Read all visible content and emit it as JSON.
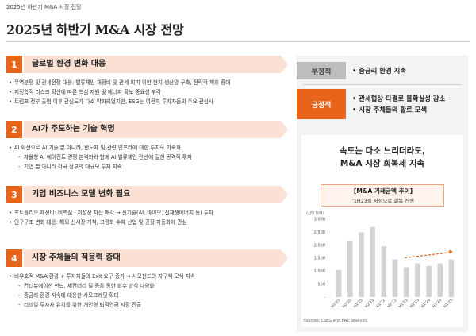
{
  "header": {
    "topline": "2025년 하반기 M&A 시장 전망",
    "title": "2025년 하반기 M&A 시장 전망"
  },
  "sections": [
    {
      "num": "1",
      "title": "글로벌 환경 변화 대응",
      "items": [
        {
          "type": "b",
          "text": "무역분쟁 및 관세전쟁 대응: 밸류체인 재정비 및 관세 회피 위한 현지 생산망 구축, 전략적 제휴 증대"
        },
        {
          "type": "b",
          "text": "지정학적 리스크 확산에 따른 핵심 자원 및 에너지 확보 중요성 부각"
        },
        {
          "type": "b",
          "text": "트럼프 정부 출범 이후 관심도가 다소 약화되었지만, ESG는 여전히 투자자들의 주요 관심사"
        }
      ]
    },
    {
      "num": "2",
      "title": "AI가 주도하는 기술 혁명",
      "items": [
        {
          "type": "b",
          "text": "AI 확산으로 AI 기술 뿐 아니라, 반도체 및 관련 인프라에 대한 투자도 가속화"
        },
        {
          "type": "d",
          "text": "자율형 AI 에이전트 경쟁 본격화와 함께 AI 밸류체인 전반에 걸친 공격적 투자"
        },
        {
          "type": "d",
          "text": "기업 뿐 아니라 각국 정부의 대규모 투자 지속"
        }
      ]
    },
    {
      "num": "3",
      "title": "기업 비즈니스 모델 변화 필요",
      "items": [
        {
          "type": "b",
          "text": "포트폴리오 재정비: 비핵심 · 저성장 자산 매각 → 신기술(AI, 바이오, 신재생에너지 등) 투자"
        },
        {
          "type": "b",
          "text": "인구구조 변화 대응: 해외 신시장 개척, 고령화 수혜 산업 및 공장 자동화에 관심"
        }
      ]
    },
    {
      "num": "4",
      "title": "시장 주체들의 적응력 증대",
      "items": [
        {
          "type": "b",
          "text": "비우호적 M&A 환경 + 투자자들의 Exit 요구 증가 → 사모펀드의 자구책 모색 지속"
        },
        {
          "type": "d",
          "text": "컨티뉴에이션 펀드, 세컨더리 딜 등을 통한 회수 방식 다양화"
        },
        {
          "type": "d",
          "text": "중금리 환경 지속에 대응한 사모크레딧 확대"
        },
        {
          "type": "d",
          "text": "리테일 투자자 유치를 위한 개인형 퇴직연금 시장 진출"
        }
      ]
    }
  ],
  "panel": {
    "negative": {
      "tag": "부정적",
      "lines": [
        "• 중금리 환경 지속"
      ]
    },
    "positive": {
      "tag": "긍정적",
      "lines": [
        "• 관세협상 타결로 불확실성 감소",
        "• 시장 주체들의 활로 모색"
      ]
    },
    "headline": [
      "속도는 다소 느리더라도,",
      "M&A 시장 회복세 지속"
    ],
    "chart_title": "[M&A 거래금액 추이]",
    "chart_subtitle": "'1H23를 저점으로 회복 진행",
    "source": "Sources: LSEG and PwC analysis",
    "colors": {
      "accent": "#e8641a",
      "bar": "#d3d3d3",
      "trend": "#e8641a"
    }
  },
  "chart_data": {
    "type": "bar",
    "unit_label": "(십억 달러)",
    "categories": [
      "H1'20",
      "H2'20",
      "H1'21",
      "H2'21",
      "H1'22",
      "H2'22",
      "H1'23",
      "H2'23",
      "H1'24",
      "H2'24",
      "H1'25"
    ],
    "values": [
      1050,
      2150,
      2500,
      2700,
      1950,
      1450,
      1150,
      1300,
      1200,
      1300,
      1450
    ],
    "ylim": [
      0,
      3000
    ],
    "yticks": [
      0,
      500,
      1000,
      1500,
      2000,
      2500,
      3000
    ],
    "ytick_labels": [
      "-",
      "500",
      "1,000",
      "1,500",
      "2,000",
      "2,500",
      "3,000"
    ],
    "trend": {
      "from": "H1'23",
      "to": "H1'25"
    }
  }
}
